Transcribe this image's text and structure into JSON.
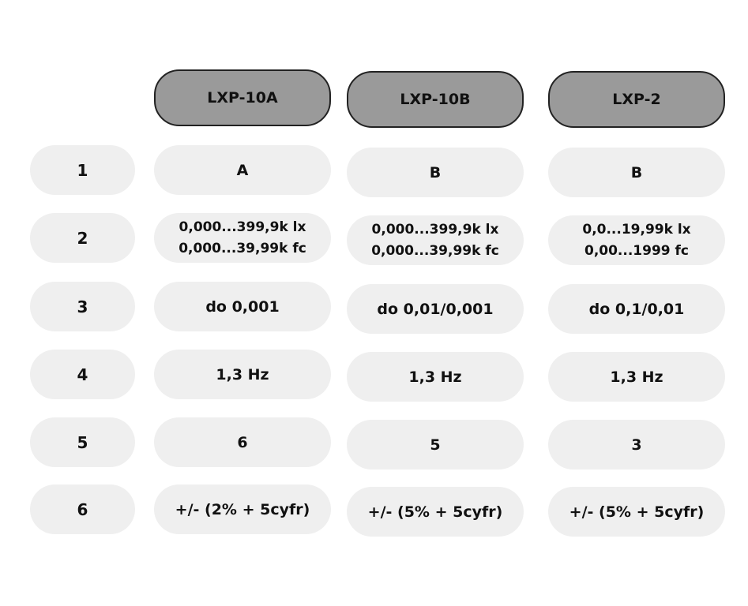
{
  "columns": [
    "LXP-10A",
    "LXP-10B",
    "LXP-2"
  ],
  "rows": [
    {
      "label": "1",
      "cells": [
        [
          "A"
        ],
        [
          "B"
        ],
        [
          "B"
        ]
      ]
    },
    {
      "label": "2",
      "cells": [
        [
          "0,000...399,9k lx",
          "0,000...39,99k fc"
        ],
        [
          "0,000...399,9k lx",
          "0,000...39,99k fc"
        ],
        [
          "0,0...19,99k lx",
          "0,00...1999 fc"
        ]
      ]
    },
    {
      "label": "3",
      "cells": [
        [
          "do 0,001"
        ],
        [
          "do 0,01/0,001"
        ],
        [
          "do 0,1/0,01"
        ]
      ]
    },
    {
      "label": "4",
      "cells": [
        [
          "1,3 Hz"
        ],
        [
          "1,3 Hz"
        ],
        [
          "1,3 Hz"
        ]
      ]
    },
    {
      "label": "5",
      "cells": [
        [
          "6"
        ],
        [
          "5"
        ],
        [
          "3"
        ]
      ]
    },
    {
      "label": "6",
      "cells": [
        [
          "+/- (2% + 5cyfr)"
        ],
        [
          "+/- (5% + 5cyfr)"
        ],
        [
          "+/- (5% + 5cyfr)"
        ]
      ]
    }
  ]
}
